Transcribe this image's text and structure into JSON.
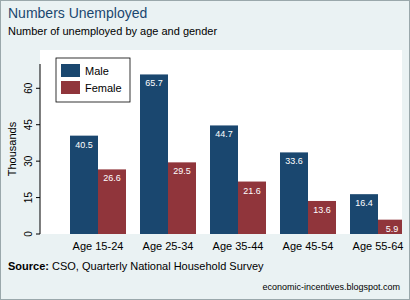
{
  "chart_data": {
    "type": "bar",
    "title": "Numbers Unemployed",
    "subtitle": "Number of unemployed by age and gender",
    "y_label": "Thousands",
    "categories": [
      "Age 15-24",
      "Age 25-34",
      "Age 35-44",
      "Age 45-54",
      "Age 55-64"
    ],
    "series": [
      {
        "name": "Male",
        "color": "#1a476f",
        "values": [
          40.5,
          65.7,
          44.7,
          33.6,
          16.4
        ]
      },
      {
        "name": "Female",
        "color": "#90353b",
        "values": [
          26.6,
          29.5,
          21.6,
          13.6,
          5.9
        ]
      }
    ],
    "ylim": [
      0,
      70
    ],
    "yticks": [
      0,
      15,
      30,
      45,
      60
    ],
    "grid": false,
    "legend": "upper left",
    "data_labels": true,
    "annotations": [
      "Source: CSO, Quarterly National Household Survey",
      "economic-incentives.blogspot.com"
    ]
  }
}
